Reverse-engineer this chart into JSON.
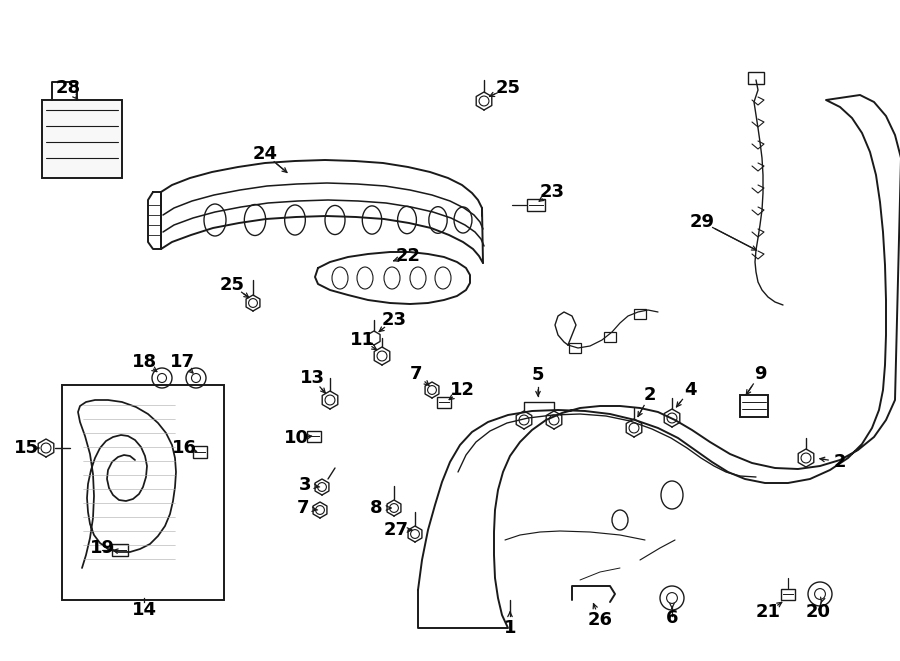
{
  "bg_color": "#ffffff",
  "line_color": "#1a1a1a",
  "figsize": [
    9.0,
    6.61
  ],
  "dpi": 100,
  "font_size": 13,
  "font_weight": "bold",
  "font_family": "DejaVu Sans"
}
